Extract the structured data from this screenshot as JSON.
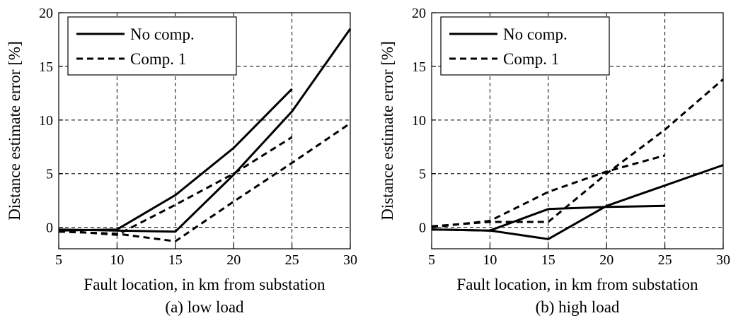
{
  "chart_data": [
    {
      "id": "a",
      "type": "line",
      "caption": "(a) low load",
      "xlabel": "Fault location, in km from substation",
      "ylabel": "Distance estimate error [%]",
      "xlim": [
        5,
        30
      ],
      "ylim": [
        -2,
        20
      ],
      "xticks": [
        5,
        10,
        15,
        20,
        25,
        30
      ],
      "yticks": [
        0,
        5,
        10,
        15,
        20
      ],
      "grid": true,
      "legend_position": "top-left",
      "legend": [
        "No comp.",
        "Comp. 1"
      ],
      "series": [
        {
          "name": "No comp.",
          "style": "solid",
          "x": [
            5,
            10,
            15,
            20,
            25
          ],
          "y": [
            -0.3,
            -0.2,
            3.0,
            7.4,
            12.9
          ]
        },
        {
          "name": "No comp.",
          "style": "solid",
          "x": [
            5,
            10,
            15,
            20,
            25,
            30
          ],
          "y": [
            -0.2,
            -0.3,
            -0.4,
            4.9,
            10.8,
            18.5
          ]
        },
        {
          "name": "Comp. 1",
          "style": "dashed",
          "x": [
            5,
            10,
            15,
            20,
            25
          ],
          "y": [
            -0.3,
            -0.7,
            2.1,
            5.0,
            8.4
          ]
        },
        {
          "name": "Comp. 1",
          "style": "dashed",
          "x": [
            5,
            10,
            15,
            20,
            25,
            30
          ],
          "y": [
            -0.4,
            -0.6,
            -1.3,
            2.4,
            6.0,
            9.7
          ]
        }
      ]
    },
    {
      "id": "b",
      "type": "line",
      "caption": "(b) high load",
      "xlabel": "Fault location, in km from substation",
      "ylabel": "Distance estimate error [%]",
      "xlim": [
        5,
        30
      ],
      "ylim": [
        -2,
        20
      ],
      "xticks": [
        5,
        10,
        15,
        20,
        25,
        30
      ],
      "yticks": [
        0,
        5,
        10,
        15,
        20
      ],
      "grid": true,
      "legend_position": "top-left",
      "legend": [
        "No comp.",
        "Comp. 1"
      ],
      "series": [
        {
          "name": "No comp.",
          "style": "solid",
          "x": [
            5,
            10,
            15,
            20,
            25
          ],
          "y": [
            -0.2,
            -0.3,
            1.7,
            1.9,
            2.0
          ]
        },
        {
          "name": "No comp.",
          "style": "solid",
          "x": [
            5,
            10,
            15,
            20,
            25,
            30
          ],
          "y": [
            -0.2,
            -0.3,
            -1.1,
            2.0,
            3.9,
            5.8
          ]
        },
        {
          "name": "Comp. 1",
          "style": "dashed",
          "x": [
            5,
            10,
            15,
            20,
            25
          ],
          "y": [
            0.0,
            0.6,
            3.3,
            5.2,
            6.7
          ]
        },
        {
          "name": "Comp. 1",
          "style": "dashed",
          "x": [
            5,
            10,
            15,
            20,
            25,
            30
          ],
          "y": [
            0.1,
            0.5,
            0.5,
            5.0,
            9.1,
            13.8
          ]
        }
      ]
    }
  ]
}
